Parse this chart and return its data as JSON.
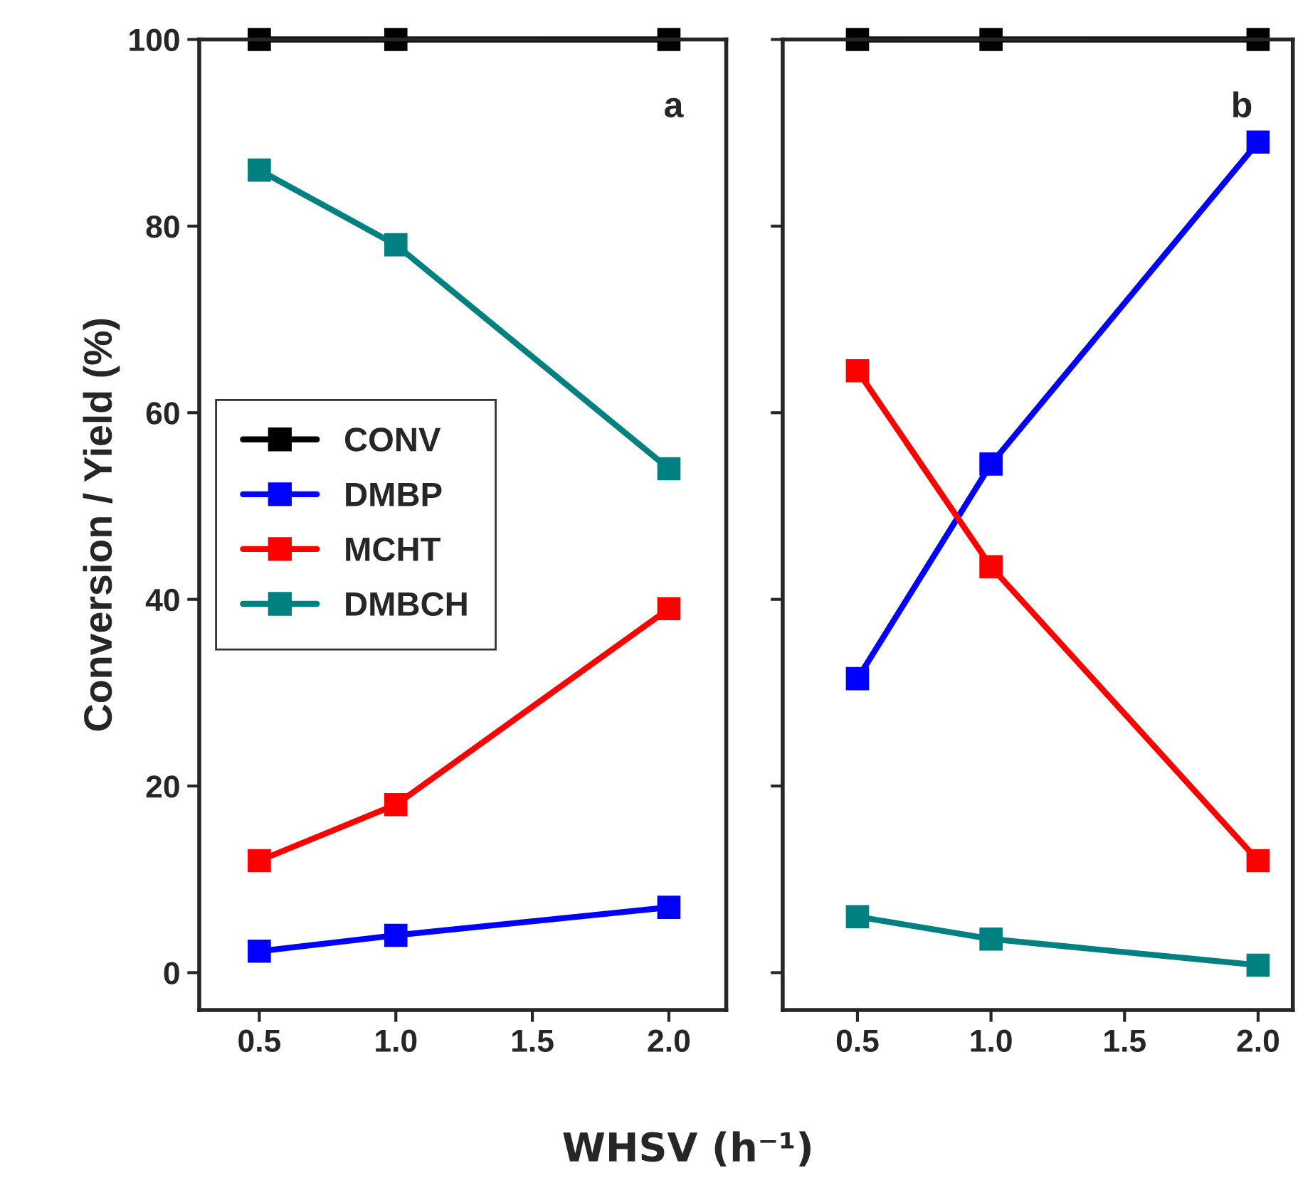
{
  "chart_data": [
    {
      "type": "line",
      "ylabel": "Conversion / Yield (%)",
      "xlabel": "WHSV (h⁻¹)",
      "x": [
        0.5,
        1.0,
        2.0
      ],
      "xlim": [
        0.28,
        2.21
      ],
      "xticks": [
        {
          "value": 0.5,
          "label": "0.5"
        },
        {
          "value": 1.0,
          "label": "1.0"
        },
        {
          "value": 1.5,
          "label": "1.5"
        },
        {
          "value": 2.0,
          "label": "2.0"
        }
      ],
      "ylim": [
        -4,
        100
      ],
      "yticks": [
        0,
        20,
        40,
        60,
        80,
        100
      ],
      "marker": "square",
      "legend": "center left",
      "grid": false,
      "annotations": [
        "a"
      ],
      "series": [
        {
          "name": "CONV",
          "color": "#000000",
          "values": [
            100,
            100,
            100
          ]
        },
        {
          "name": "DMBP",
          "color": "#0000ff",
          "values": [
            2.3,
            4,
            7
          ]
        },
        {
          "name": "MCHT",
          "color": "#ff0000",
          "values": [
            12,
            18,
            39
          ]
        },
        {
          "name": "DMBCH",
          "color": "#008080",
          "values": [
            86,
            78,
            54
          ]
        }
      ]
    },
    {
      "type": "line",
      "x": [
        0.5,
        1.0,
        2.0
      ],
      "xlim": [
        0.22,
        2.13
      ],
      "xticks": [
        {
          "value": 0.5,
          "label": "0.5"
        },
        {
          "value": 1.0,
          "label": "1.0"
        },
        {
          "value": 1.5,
          "label": "1.5"
        },
        {
          "value": 2.0,
          "label": "2.0"
        }
      ],
      "ylim": [
        -4,
        100
      ],
      "yticks": [
        0,
        20,
        40,
        60,
        80,
        100
      ],
      "tick_labels": "x",
      "marker": "square",
      "grid": false,
      "annotations": [
        "b"
      ],
      "series": [
        {
          "color": "#000000",
          "values": [
            100,
            100,
            100
          ]
        },
        {
          "color": "#0000ff",
          "values": [
            31.5,
            54.5,
            89
          ]
        },
        {
          "color": "#ff0000",
          "values": [
            64.5,
            43.5,
            12
          ]
        },
        {
          "color": "#008080",
          "values": [
            6,
            3.6,
            0.8
          ]
        }
      ]
    }
  ]
}
